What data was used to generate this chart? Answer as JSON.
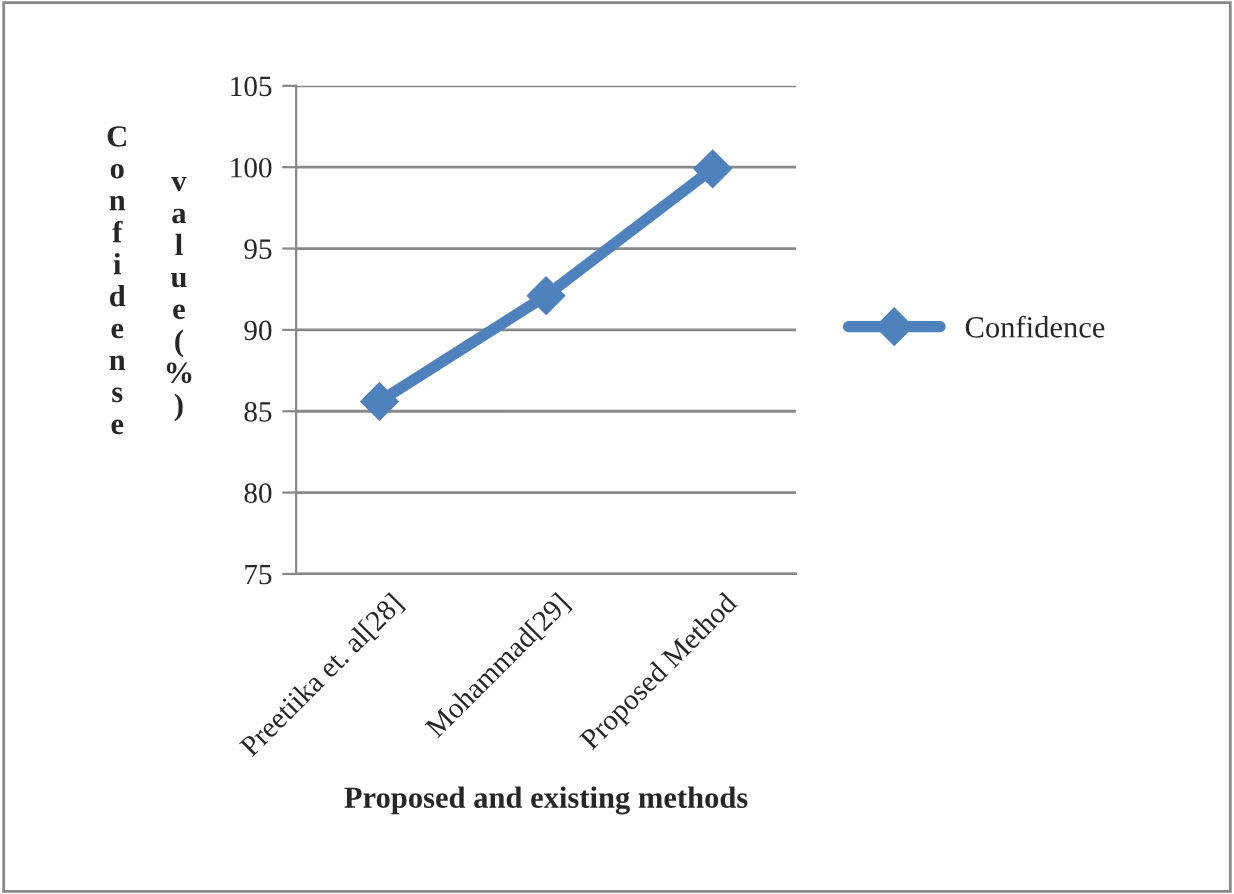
{
  "chart_data": {
    "type": "line",
    "xlabel": "Proposed and existing methods",
    "ylabel": "Confidense value(%)",
    "categories": [
      "Preetiika et. al[28]",
      "Mohammad[29]",
      "Proposed Method"
    ],
    "series": [
      {
        "name": "Confidence",
        "color": "#4f81bd",
        "values": [
          85.6,
          92.1,
          99.9
        ]
      }
    ],
    "ylim": [
      75,
      105
    ],
    "yticks": [
      75,
      80,
      85,
      90,
      95,
      100,
      105
    ],
    "grid": "y",
    "legend": "right",
    "marker": "diamond",
    "line_style": "solid"
  }
}
